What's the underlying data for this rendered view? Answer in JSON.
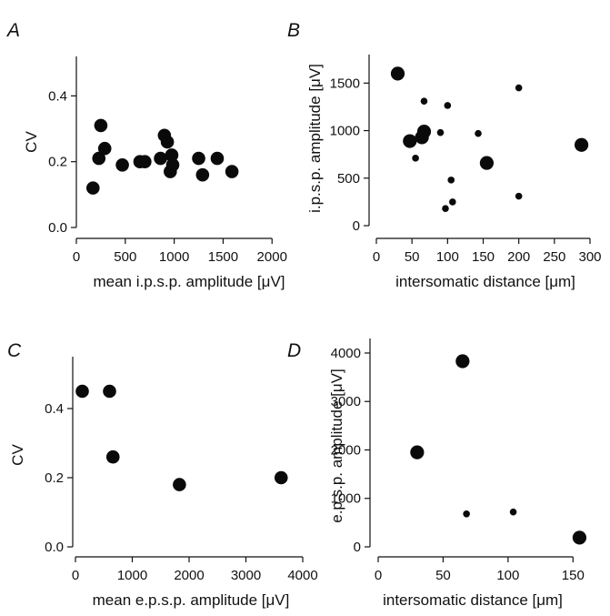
{
  "colors": {
    "marker": "#0a0a0a",
    "axis": "#111111",
    "background": "#ffffff"
  },
  "chart_data": [
    {
      "panel": "A",
      "type": "scatter",
      "xlabel": "mean i.p.s.p. amplitude [μV]",
      "ylabel": "CV",
      "xlim": [
        0,
        2100
      ],
      "ylim": [
        0,
        0.52
      ],
      "x_ticks": [
        0,
        500,
        1000,
        1500,
        2000
      ],
      "y_ticks": [
        0.0,
        0.2,
        0.4
      ],
      "y_tick_labels": [
        "0.0",
        "0.2",
        "0.4"
      ],
      "points": [
        {
          "x": 170,
          "y": 0.12
        },
        {
          "x": 230,
          "y": 0.21
        },
        {
          "x": 250,
          "y": 0.31
        },
        {
          "x": 290,
          "y": 0.24
        },
        {
          "x": 470,
          "y": 0.19
        },
        {
          "x": 650,
          "y": 0.2
        },
        {
          "x": 700,
          "y": 0.2
        },
        {
          "x": 860,
          "y": 0.21
        },
        {
          "x": 900,
          "y": 0.28
        },
        {
          "x": 930,
          "y": 0.26
        },
        {
          "x": 960,
          "y": 0.17
        },
        {
          "x": 975,
          "y": 0.22
        },
        {
          "x": 985,
          "y": 0.19
        },
        {
          "x": 1250,
          "y": 0.21
        },
        {
          "x": 1290,
          "y": 0.16
        },
        {
          "x": 1440,
          "y": 0.21
        },
        {
          "x": 1590,
          "y": 0.17
        }
      ]
    },
    {
      "panel": "B",
      "type": "scatter",
      "xlabel": "intersomatic distance [μm]",
      "ylabel": "i.p.s.p. amplitude [μV]",
      "xlim": [
        0,
        300
      ],
      "ylim": [
        0,
        1800
      ],
      "x_ticks": [
        0,
        50,
        100,
        150,
        200,
        250,
        300
      ],
      "y_ticks": [
        0,
        500,
        1000,
        1500
      ],
      "points": [
        {
          "x": 30,
          "y": 1600,
          "size": "large"
        },
        {
          "x": 47,
          "y": 890,
          "size": "large"
        },
        {
          "x": 55,
          "y": 710,
          "size": "small"
        },
        {
          "x": 64,
          "y": 930,
          "size": "large"
        },
        {
          "x": 67,
          "y": 990,
          "size": "large"
        },
        {
          "x": 67,
          "y": 1310,
          "size": "small"
        },
        {
          "x": 90,
          "y": 980,
          "size": "small"
        },
        {
          "x": 97,
          "y": 180,
          "size": "small"
        },
        {
          "x": 100,
          "y": 1265,
          "size": "small"
        },
        {
          "x": 105,
          "y": 480,
          "size": "small"
        },
        {
          "x": 107,
          "y": 250,
          "size": "small"
        },
        {
          "x": 143,
          "y": 970,
          "size": "small"
        },
        {
          "x": 155,
          "y": 660,
          "size": "large"
        },
        {
          "x": 200,
          "y": 1450,
          "size": "small"
        },
        {
          "x": 200,
          "y": 310,
          "size": "small"
        },
        {
          "x": 288,
          "y": 850,
          "size": "large"
        }
      ]
    },
    {
      "panel": "C",
      "type": "scatter",
      "xlabel": "mean e.p.s.p. amplitude [μV]",
      "ylabel": "CV",
      "xlim": [
        0,
        4000
      ],
      "ylim": [
        0,
        0.55
      ],
      "x_ticks": [
        0,
        1000,
        2000,
        3000,
        4000
      ],
      "y_ticks": [
        0.0,
        0.2,
        0.4
      ],
      "y_tick_labels": [
        "0.0",
        "0.2",
        "0.4"
      ],
      "points": [
        {
          "x": 120,
          "y": 0.45
        },
        {
          "x": 600,
          "y": 0.45
        },
        {
          "x": 660,
          "y": 0.26
        },
        {
          "x": 1830,
          "y": 0.18
        },
        {
          "x": 3620,
          "y": 0.2
        }
      ]
    },
    {
      "panel": "D",
      "type": "scatter",
      "xlabel": "intersomatic distance [μm]",
      "ylabel": "e.p.s.p. amplitude [μV]",
      "xlim": [
        0,
        175
      ],
      "ylim": [
        0,
        4300
      ],
      "x_ticks": [
        0,
        50,
        100,
        150
      ],
      "y_ticks": [
        0,
        1000,
        2000,
        3000,
        4000
      ],
      "points": [
        {
          "x": 30,
          "y": 1950,
          "size": "large"
        },
        {
          "x": 65,
          "y": 3830,
          "size": "large"
        },
        {
          "x": 68,
          "y": 680,
          "size": "small"
        },
        {
          "x": 104,
          "y": 720,
          "size": "small"
        },
        {
          "x": 155,
          "y": 190,
          "size": "large"
        }
      ]
    }
  ]
}
